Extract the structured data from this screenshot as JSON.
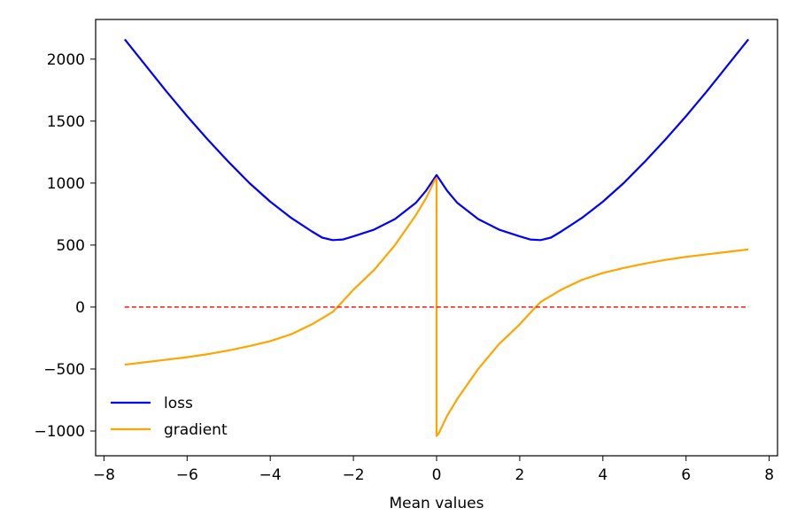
{
  "chart_data": {
    "type": "line",
    "title": "",
    "xlabel": "Mean values",
    "ylabel": "",
    "xlim": [
      -8.2,
      8.2
    ],
    "ylim": [
      -1200,
      2320
    ],
    "grid": false,
    "legend_position": "lower-left",
    "x_ticks": [
      -8,
      -6,
      -4,
      -2,
      0,
      2,
      4,
      6,
      8
    ],
    "x_tick_labels": [
      "−8",
      "−6",
      "−4",
      "−2",
      "0",
      "2",
      "4",
      "6",
      "8"
    ],
    "y_ticks": [
      2000,
      1500,
      1000,
      500,
      0,
      -500,
      -1000
    ],
    "y_tick_labels": [
      "2000",
      "1500",
      "1000",
      "500",
      "0",
      "−500",
      "−1000"
    ],
    "series": [
      {
        "name": "loss",
        "color": "#0000ff",
        "style": "solid",
        "x": [
          -7.5,
          -7.0,
          -6.5,
          -6.0,
          -5.5,
          -5.0,
          -4.5,
          -4.0,
          -3.5,
          -3.0,
          -2.75,
          -2.5,
          -2.25,
          -2.0,
          -1.5,
          -1.0,
          -0.5,
          -0.25,
          0.0,
          0.25,
          0.5,
          1.0,
          1.5,
          2.0,
          2.25,
          2.5,
          2.75,
          3.0,
          3.5,
          4.0,
          4.5,
          5.0,
          5.5,
          6.0,
          6.5,
          7.0,
          7.5
        ],
        "y": [
          2160,
          1950,
          1740,
          1540,
          1350,
          1170,
          1000,
          850,
          720,
          610,
          560,
          540,
          545,
          570,
          625,
          710,
          840,
          940,
          1065,
          940,
          840,
          710,
          625,
          570,
          545,
          540,
          560,
          610,
          720,
          850,
          1000,
          1170,
          1350,
          1540,
          1740,
          1950,
          2160
        ]
      },
      {
        "name": "gradient",
        "color": "#ffa500",
        "style": "solid",
        "x": [
          -7.5,
          -7.0,
          -6.5,
          -6.0,
          -5.5,
          -5.0,
          -4.5,
          -4.0,
          -3.5,
          -3.0,
          -2.5,
          -2.3,
          -2.0,
          -1.5,
          -1.0,
          -0.5,
          -0.25,
          -0.05,
          0.0,
          0.0,
          0.05,
          0.25,
          0.5,
          1.0,
          1.5,
          2.0,
          2.3,
          2.5,
          3.0,
          3.5,
          4.0,
          4.5,
          5.0,
          5.5,
          6.0,
          6.5,
          7.0,
          7.5
        ],
        "y": [
          -465,
          -445,
          -425,
          -405,
          -380,
          -350,
          -315,
          -275,
          -220,
          -140,
          -40,
          30,
          140,
          300,
          500,
          740,
          880,
          1020,
          1040,
          -1040,
          -1020,
          -880,
          -740,
          -500,
          -300,
          -140,
          -30,
          40,
          140,
          220,
          275,
          315,
          350,
          380,
          405,
          425,
          445,
          465
        ]
      },
      {
        "name": "",
        "color": "#ff0000",
        "style": "dashed",
        "x": [
          -7.5,
          7.5
        ],
        "y": [
          0,
          0
        ]
      }
    ],
    "legend": [
      {
        "label": "loss",
        "color": "#0000ff"
      },
      {
        "label": "gradient",
        "color": "#ffa500"
      }
    ]
  }
}
